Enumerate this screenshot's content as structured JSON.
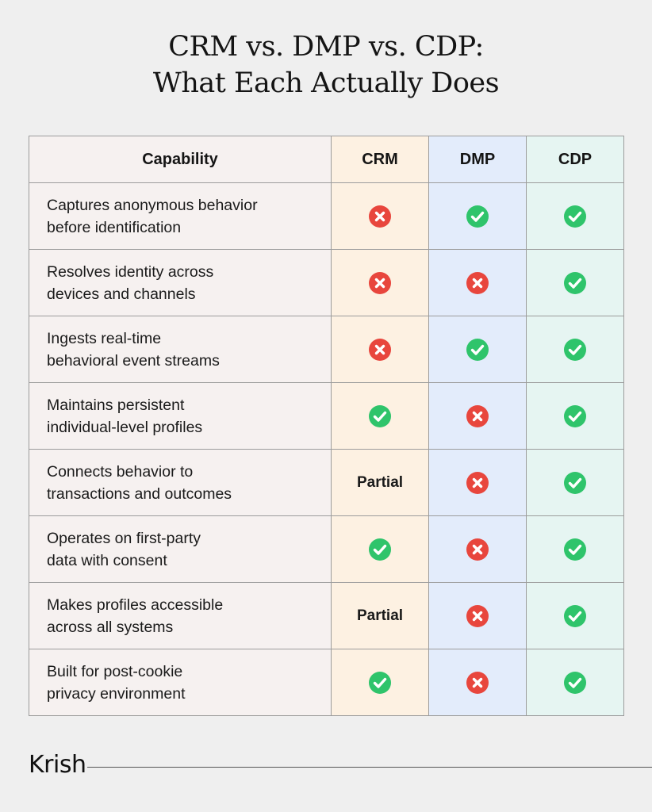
{
  "title": {
    "line1": "CRM vs. DMP vs. CDP:",
    "line2": "What Each Actually Does"
  },
  "table": {
    "headers": [
      "Capability",
      "CRM",
      "DMP",
      "CDP"
    ],
    "rows": [
      {
        "capability": [
          "Captures anonymous behavior",
          "before identification"
        ],
        "crm": "no",
        "dmp": "yes",
        "cdp": "yes"
      },
      {
        "capability": [
          "Resolves identity across",
          "devices and channels"
        ],
        "crm": "no",
        "dmp": "no",
        "cdp": "yes"
      },
      {
        "capability": [
          "Ingests real-time",
          "behavioral event streams"
        ],
        "crm": "no",
        "dmp": "yes",
        "cdp": "yes"
      },
      {
        "capability": [
          "Maintains persistent",
          "individual-level profiles"
        ],
        "crm": "yes",
        "dmp": "no",
        "cdp": "yes"
      },
      {
        "capability": [
          "Connects behavior to",
          "transactions and outcomes"
        ],
        "crm": "Partial",
        "dmp": "no",
        "cdp": "yes"
      },
      {
        "capability": [
          "Operates on first-party",
          "data with consent"
        ],
        "crm": "yes",
        "dmp": "no",
        "cdp": "yes"
      },
      {
        "capability": [
          "Makes profiles accessible",
          "across all systems"
        ],
        "crm": "Partial",
        "dmp": "no",
        "cdp": "yes"
      },
      {
        "capability": [
          "Built for post-cookie",
          "privacy environment"
        ],
        "crm": "yes",
        "dmp": "no",
        "cdp": "yes"
      }
    ]
  },
  "icons": {
    "yes": {
      "name": "check-circle-icon",
      "color": "#2fc46b"
    },
    "no": {
      "name": "x-circle-icon",
      "color": "#e8463d"
    }
  },
  "footer": {
    "brand": "Krish"
  }
}
